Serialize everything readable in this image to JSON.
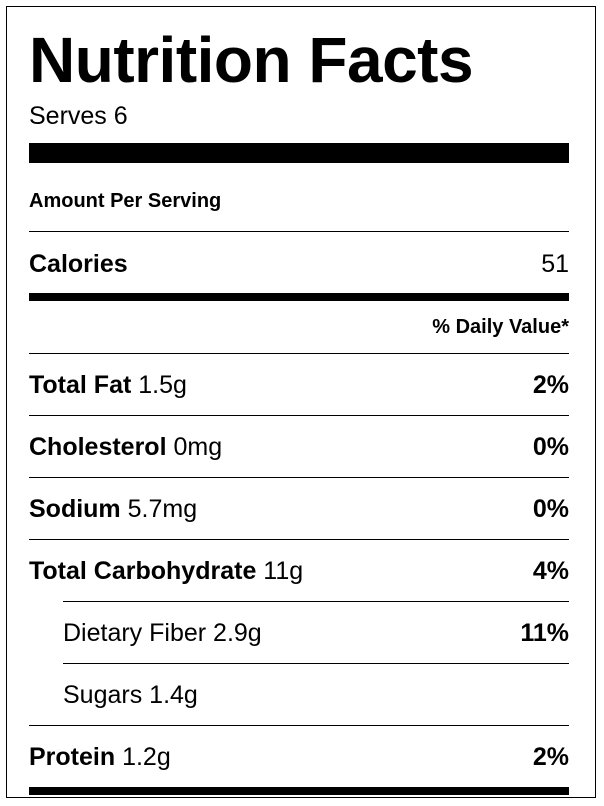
{
  "title": "Nutrition Facts",
  "serves": "Serves 6",
  "amount_per_serving": "Amount Per Serving",
  "calories": {
    "label": "Calories",
    "value": "51"
  },
  "daily_value_header": "% Daily Value*",
  "nutrients": [
    {
      "name": "Total Fat",
      "amount": "1.5g",
      "daily_value": "2%"
    },
    {
      "name": "Cholesterol",
      "amount": "0mg",
      "daily_value": "0%"
    },
    {
      "name": "Sodium",
      "amount": "5.7mg",
      "daily_value": "0%"
    },
    {
      "name": "Total Carbohydrate",
      "amount": "11g",
      "daily_value": "4%"
    },
    {
      "name": "Dietary Fiber",
      "amount": "2.9g",
      "daily_value": "11%"
    },
    {
      "name": "Sugars",
      "amount": "1.4g",
      "daily_value": ""
    },
    {
      "name": "Protein",
      "amount": "1.2g",
      "daily_value": "2%"
    }
  ]
}
